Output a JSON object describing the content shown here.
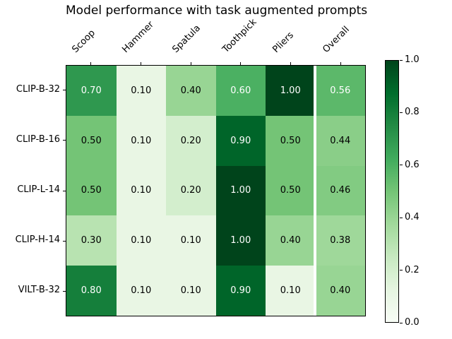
{
  "title": "Model performance with task augmented prompts",
  "chart_data": {
    "type": "heatmap",
    "title": "Model performance with task augmented prompts",
    "columns": [
      "Scoop",
      "Hammer",
      "Spatula",
      "Toothpick",
      "Pliers",
      "Overall"
    ],
    "rows": [
      "CLIP-B-32",
      "CLIP-B-16",
      "CLIP-L-14",
      "CLIP-H-14",
      "VILT-B-32"
    ],
    "values": [
      [
        0.7,
        0.1,
        0.4,
        0.6,
        1.0,
        0.56
      ],
      [
        0.5,
        0.1,
        0.2,
        0.9,
        0.5,
        0.44
      ],
      [
        0.5,
        0.1,
        0.2,
        1.0,
        0.5,
        0.46
      ],
      [
        0.3,
        0.1,
        0.1,
        1.0,
        0.4,
        0.38
      ],
      [
        0.8,
        0.1,
        0.1,
        0.9,
        0.1,
        0.4
      ]
    ],
    "cell_value_decimals": 2,
    "colormap": "Greens",
    "vmin": 0.0,
    "vmax": 1.0,
    "colorbar_ticks": [
      {
        "label": "0.0",
        "pos": 0.0
      },
      {
        "label": "0.2",
        "pos": 0.2
      },
      {
        "label": "0.4",
        "pos": 0.4
      },
      {
        "label": "0.6",
        "pos": 0.6
      },
      {
        "label": "0.8",
        "pos": 0.8
      },
      {
        "label": "1.0",
        "pos": 1.0
      }
    ],
    "separator_after_column": "Pliers",
    "grid_on": false,
    "legend_position": "colorbar-right"
  },
  "colors": {
    "colormap_stops": [
      [
        0.0,
        "#f7fcf5"
      ],
      [
        0.125,
        "#e5f5e0"
      ],
      [
        0.25,
        "#c7e9c0"
      ],
      [
        0.375,
        "#a1d99b"
      ],
      [
        0.5,
        "#74c476"
      ],
      [
        0.625,
        "#41ab5d"
      ],
      [
        0.75,
        "#238b45"
      ],
      [
        0.875,
        "#006d2c"
      ],
      [
        1.0,
        "#00441b"
      ]
    ],
    "annotation_light": "#ffffff",
    "annotation_dark": "#000000",
    "annotation_light_threshold": 0.5,
    "separator": "#ffffff",
    "axis": "#000000",
    "background": "#ffffff"
  }
}
